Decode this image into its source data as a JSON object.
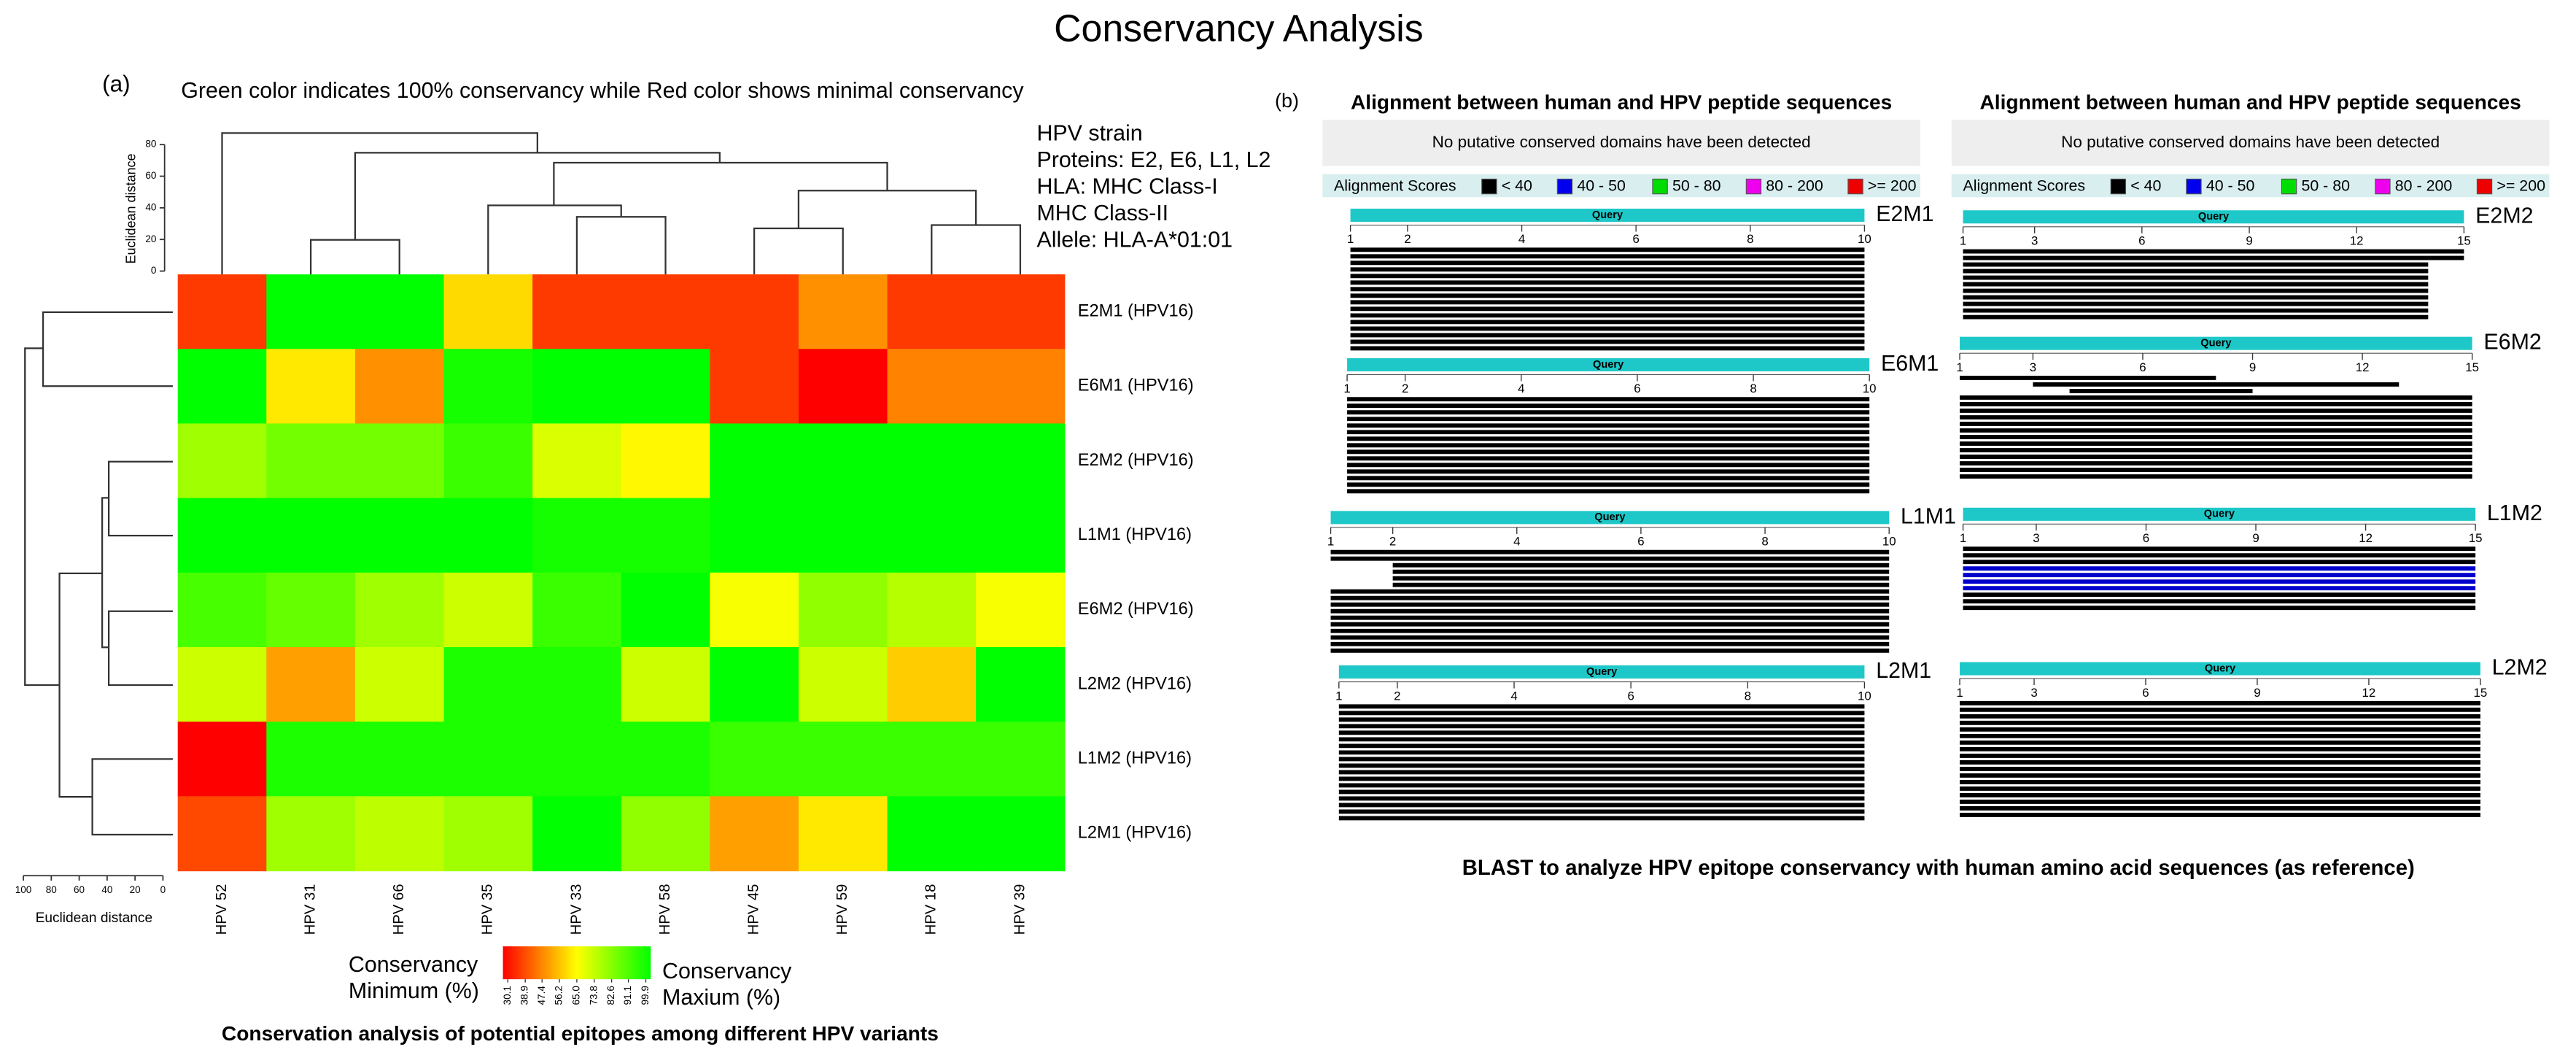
{
  "title": "Conservancy Analysis",
  "panel_labels": [
    "(a)",
    "(b)"
  ],
  "chart_data": {
    "type": "heatmap",
    "subtitle": "Green color indicates 100% conservancy while Red color shows minimal conservancy",
    "annotations": [
      "HPV strain",
      "Proteins: E2, E6, L1, L2",
      "HLA: MHC Class-I",
      "MHC Class-II",
      "Allele: HLA-A*01:01"
    ],
    "rows": [
      "E2M1 (HPV16)",
      "E6M1 (HPV16)",
      "E2M2 (HPV16)",
      "L1M1 (HPV16)",
      "E6M2 (HPV16)",
      "L2M2 (HPV16)",
      "L1M2 (HPV16)",
      "L2M1 (HPV16)"
    ],
    "categories": [
      "HPV 52",
      "HPV 31",
      "HPV 66",
      "HPV 35",
      "HPV 33",
      "HPV 58",
      "HPV 45",
      "HPV 59",
      "HPV 18",
      "HPV 39"
    ],
    "values": [
      [
        38,
        99.9,
        99.9,
        60,
        38,
        38,
        38,
        50,
        38,
        38
      ],
      [
        99.9,
        62,
        50,
        97,
        99.9,
        99.9,
        38,
        30.1,
        48,
        48
      ],
      [
        78,
        84,
        84,
        92,
        70,
        64,
        99.9,
        99.9,
        99.9,
        99.9
      ],
      [
        99.9,
        99.9,
        99.9,
        99.9,
        97,
        97,
        99.9,
        99.9,
        99.9,
        99.9
      ],
      [
        90,
        86,
        78,
        72,
        92,
        99.9,
        66,
        80,
        75,
        66
      ],
      [
        72,
        52,
        72,
        96,
        96,
        72,
        99.9,
        72,
        58,
        99.9
      ],
      [
        30.1,
        96,
        96,
        96,
        96,
        96,
        92,
        92,
        92,
        92
      ],
      [
        40,
        78,
        74,
        78,
        99.9,
        80,
        52,
        62,
        99.9,
        99.9
      ]
    ],
    "colorscale": [
      "#ff0000",
      "#ffff00",
      "#00ff00"
    ],
    "clim": [
      30.1,
      99.9
    ],
    "cticks": [
      30.1,
      38.9,
      47.4,
      56.2,
      {
        "value": 65,
        "label": "65.0"
      },
      73.8,
      82.6,
      91.1,
      99.9
    ],
    "colorbar_min_label": [
      "Conservancy",
      "Minimum (%)"
    ],
    "colorbar_max_label": [
      "Conservancy",
      "Maxium (%)"
    ],
    "dendrogram_axis_label": "Euclidean distance",
    "col_dendrogram_lim": [
      0,
      80
    ],
    "col_dendrogram_ticks": [
      0,
      20,
      40,
      60,
      80
    ],
    "row_dendrogram_lim": [
      100,
      0
    ],
    "row_dendrogram_ticks": [
      100,
      80,
      60,
      40,
      20,
      0
    ],
    "caption": "Conservation analysis of potential epitopes among different HPV variants"
  },
  "blast": {
    "caption": "BLAST to analyze HPV epitope conservancy with human amino acid sequences (as reference)",
    "panels": [
      {
        "heading": "Alignment between human and HPV peptide sequences",
        "notice": "No putative conserved domains have been detected",
        "legend_title": "Alignment Scores",
        "legend": [
          {
            "label": "< 40",
            "color": "#000000"
          },
          {
            "label": "40 - 50",
            "color": "#0000ee"
          },
          {
            "label": "50 - 80",
            "color": "#00dd00"
          },
          {
            "label": "80 - 200",
            "color": "#ee00ee"
          },
          {
            "label": ">= 200",
            "color": "#ee0000"
          }
        ],
        "query_label": "Query",
        "blocks": [
          {
            "name": "E2M1",
            "xlim": [
              1,
              10
            ],
            "ticks": [
              1,
              2,
              4,
              6,
              8,
              10
            ],
            "hits": [
              {
                "from": 1,
                "to": 10,
                "count": 16,
                "color": "#000000"
              }
            ]
          },
          {
            "name": "E6M1",
            "xlim": [
              1,
              10
            ],
            "ticks": [
              1,
              2,
              4,
              6,
              8,
              10
            ],
            "hits": [
              {
                "from": 1,
                "to": 10,
                "count": 15,
                "color": "#000000"
              }
            ]
          },
          {
            "name": "L1M1",
            "xlim": [
              1,
              10
            ],
            "ticks": [
              1,
              2,
              4,
              6,
              8,
              10
            ],
            "hits": [
              {
                "from": 1,
                "to": 10,
                "count": 2,
                "color": "#000000"
              },
              {
                "from": 2,
                "to": 10,
                "count": 4,
                "color": "#000000"
              },
              {
                "from": 1,
                "to": 10,
                "count": 10,
                "color": "#000000"
              }
            ]
          },
          {
            "name": "L2M1",
            "xlim": [
              1,
              10
            ],
            "ticks": [
              1,
              2,
              4,
              6,
              8,
              10
            ],
            "hits": [
              {
                "from": 1,
                "to": 10,
                "count": 18,
                "color": "#000000"
              }
            ]
          }
        ]
      },
      {
        "heading": "Alignment between human and HPV peptide sequences",
        "notice": "No putative conserved domains have been detected",
        "legend_title": "Alignment Scores",
        "legend": [
          {
            "label": "< 40",
            "color": "#000000"
          },
          {
            "label": "40 - 50",
            "color": "#0000ee"
          },
          {
            "label": "50 - 80",
            "color": "#00dd00"
          },
          {
            "label": "80 - 200",
            "color": "#ee00ee"
          },
          {
            "label": ">= 200",
            "color": "#ee0000"
          }
        ],
        "query_label": "Query",
        "blocks": [
          {
            "name": "E2M2",
            "xlim": [
              1,
              15
            ],
            "ticks": [
              1,
              3,
              6,
              9,
              12,
              15
            ],
            "hits": [
              {
                "from": 1,
                "to": 15,
                "count": 2,
                "color": "#000000"
              },
              {
                "from": 1,
                "to": 14,
                "count": 9,
                "color": "#000000"
              }
            ]
          },
          {
            "name": "E6M2",
            "xlim": [
              1,
              15
            ],
            "ticks": [
              1,
              3,
              6,
              9,
              12,
              15
            ],
            "hits": [
              {
                "from": 1,
                "to": 8,
                "count": 1,
                "color": "#000000"
              },
              {
                "from": 3,
                "to": 13,
                "count": 1,
                "color": "#000000"
              },
              {
                "from": 4,
                "to": 9,
                "count": 1,
                "color": "#000000"
              },
              {
                "from": 1,
                "to": 15,
                "count": 13,
                "color": "#000000"
              }
            ]
          },
          {
            "name": "L1M2",
            "xlim": [
              1,
              15
            ],
            "ticks": [
              1,
              3,
              6,
              9,
              12,
              15
            ],
            "hits": [
              {
                "from": 1,
                "to": 15,
                "count": 3,
                "color": "#000000"
              },
              {
                "from": 1,
                "to": 15,
                "count": 4,
                "color": "#0000cc"
              },
              {
                "from": 1,
                "to": 15,
                "count": 3,
                "color": "#000000"
              }
            ]
          },
          {
            "name": "L2M2",
            "xlim": [
              1,
              15
            ],
            "ticks": [
              1,
              3,
              6,
              9,
              12,
              15
            ],
            "hits": [
              {
                "from": 1,
                "to": 15,
                "count": 18,
                "color": "#000000"
              }
            ]
          }
        ]
      }
    ]
  }
}
